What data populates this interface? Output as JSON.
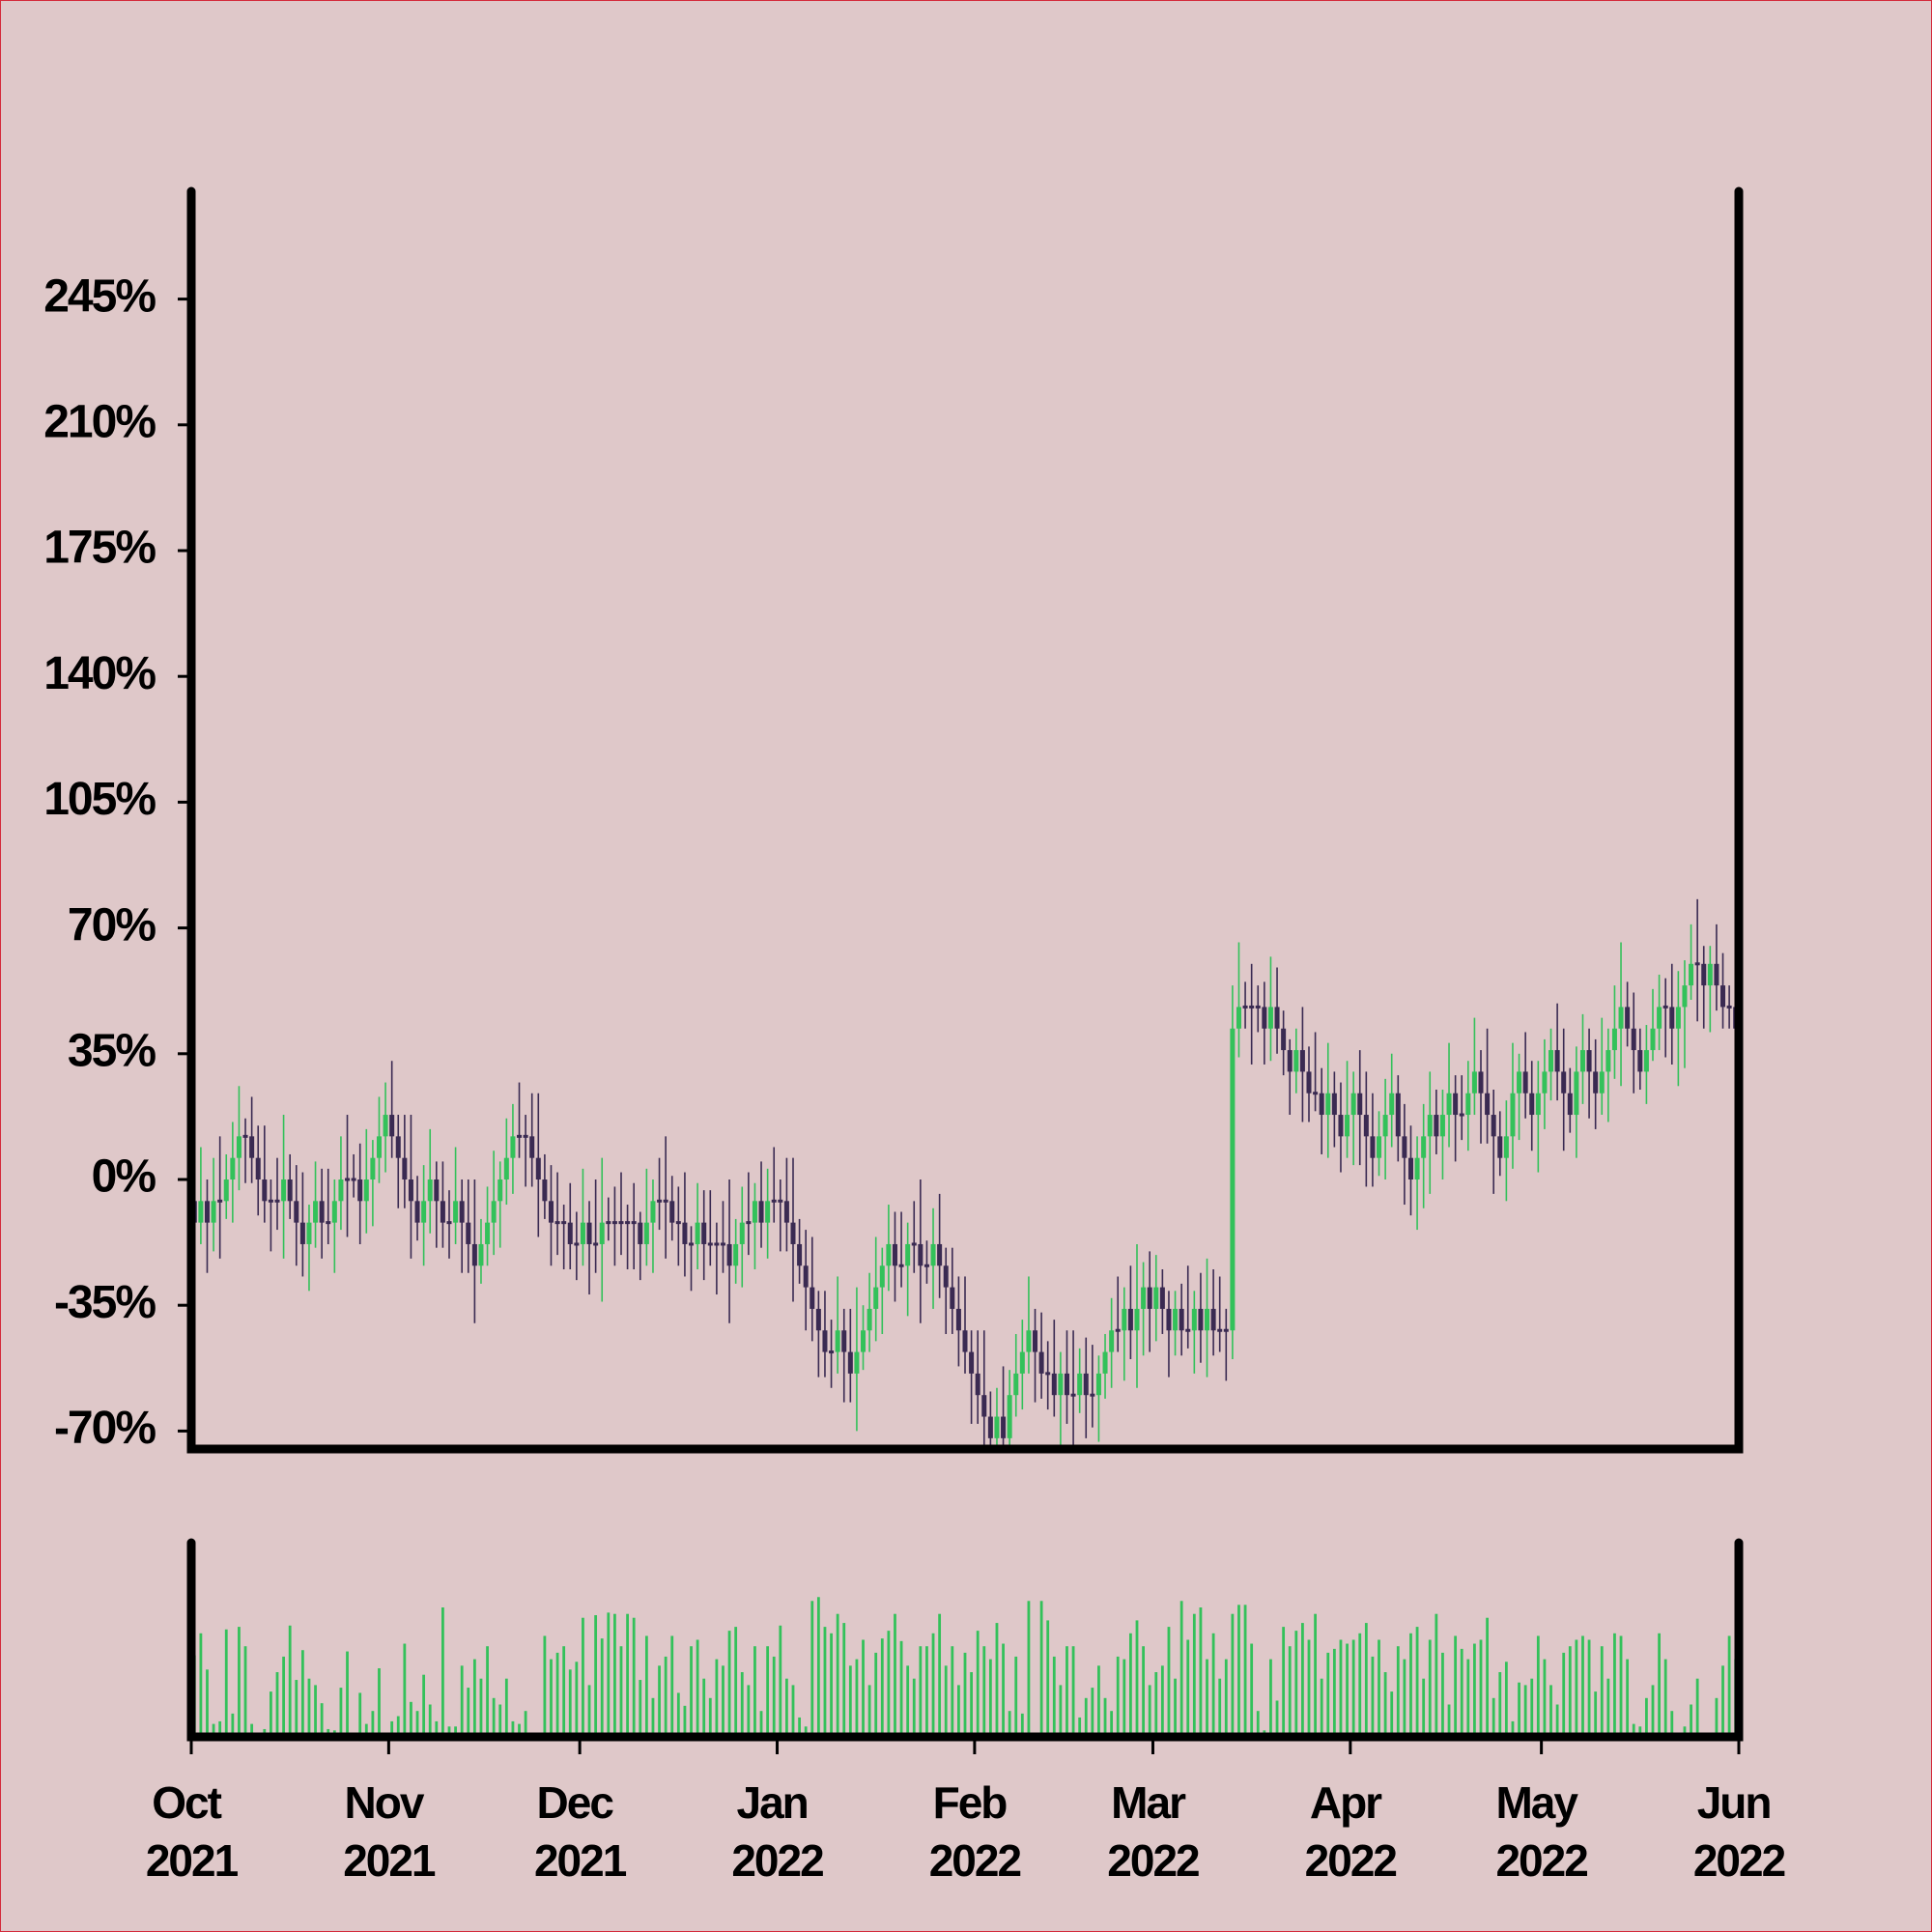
{
  "chart_data": {
    "type": "candlestick",
    "up_color": "#33c15a",
    "down_color": "#3a2a52",
    "volume_color": "#33c15a",
    "xlim": [
      0,
      243
    ],
    "xticks": [
      {
        "value": 0,
        "label": "Oct 2021"
      },
      {
        "value": 31,
        "label": "Nov 2021"
      },
      {
        "value": 61,
        "label": "Dec 2021"
      },
      {
        "value": 92,
        "label": "Jan 2022"
      },
      {
        "value": 123,
        "label": "Feb 2022"
      },
      {
        "value": 151,
        "label": "Mar 2022"
      },
      {
        "value": 182,
        "label": "Apr 2022"
      },
      {
        "value": 212,
        "label": "May 2022"
      },
      {
        "value": 243,
        "label": "Jun 2022"
      }
    ],
    "ylim": [
      -75,
      275
    ],
    "yticks": [
      {
        "value": -70,
        "label": "-70%"
      },
      {
        "value": -35,
        "label": "-35%"
      },
      {
        "value": 0,
        "label": "0%"
      },
      {
        "value": 35,
        "label": "35%"
      },
      {
        "value": 70,
        "label": "70%"
      },
      {
        "value": 105,
        "label": "105%"
      },
      {
        "value": 140,
        "label": "140%"
      },
      {
        "value": 175,
        "label": "175%"
      },
      {
        "value": 210,
        "label": "210%"
      },
      {
        "value": 245,
        "label": "245%"
      }
    ],
    "volume_ylim": [
      0,
      150
    ],
    "open": [
      -6,
      -12,
      -6,
      -12,
      -6,
      -6,
      0,
      6,
      12,
      12,
      6,
      0,
      -6,
      -6,
      -6,
      0,
      -6,
      -12,
      -18,
      -12,
      -6,
      -12,
      -12,
      -6,
      0,
      0,
      0,
      -6,
      0,
      6,
      12,
      18,
      12,
      6,
      0,
      -6,
      -12,
      -6,
      0,
      -6,
      -12,
      -12,
      -6,
      -12,
      -18,
      -24,
      -18,
      -12,
      -6,
      0,
      6,
      12,
      12,
      12,
      6,
      0,
      -6,
      -12,
      -12,
      -12,
      -18,
      -18,
      -12,
      -18,
      -18,
      -12,
      -12,
      -12,
      -12,
      -12,
      -12,
      -18,
      -12,
      -6,
      -6,
      -6,
      -12,
      -12,
      -18,
      -18,
      -12,
      -18,
      -18,
      -18,
      -18,
      -24,
      -18,
      -12,
      -12,
      -6,
      -12,
      -6,
      -6,
      -6,
      -12,
      -18,
      -24,
      -30,
      -36,
      -42,
      -48,
      -48,
      -42,
      -48,
      -54,
      -48,
      -42,
      -36,
      -30,
      -24,
      -18,
      -24,
      -24,
      -18,
      -18,
      -24,
      -24,
      -18,
      -24,
      -30,
      -36,
      -42,
      -48,
      -54,
      -60,
      -66,
      -72,
      -66,
      -72,
      -60,
      -54,
      -48,
      -42,
      -48,
      -54,
      -54,
      -60,
      -54,
      -60,
      -60,
      -54,
      -60,
      -60,
      -54,
      -48,
      -42,
      -42,
      -36,
      -42,
      -36,
      -30,
      -36,
      -30,
      -36,
      -42,
      -36,
      -42,
      -42,
      -36,
      -42,
      -36,
      -42,
      -42,
      -42,
      42,
      48,
      48,
      48,
      48,
      42,
      48,
      42,
      36,
      30,
      36,
      30,
      24,
      24,
      18,
      24,
      18,
      12,
      18,
      24,
      18,
      12,
      6,
      12,
      18,
      24,
      12,
      6,
      0,
      6,
      12,
      18,
      12,
      18,
      24,
      18,
      18,
      24,
      30,
      24,
      18,
      12,
      6,
      12,
      24,
      30,
      24,
      18,
      24,
      30,
      36,
      30,
      24,
      18,
      30,
      36,
      30,
      24,
      30,
      36,
      42,
      48,
      42,
      36,
      30,
      36,
      42,
      48,
      48,
      42,
      48,
      54,
      60,
      60,
      54,
      60,
      54,
      48,
      48
    ],
    "high": [
      3,
      9,
      0,
      6,
      12,
      7,
      16,
      26,
      17,
      23,
      15,
      15,
      0,
      6,
      18,
      7,
      4,
      2,
      -7,
      5,
      3,
      3,
      0,
      12,
      18,
      7,
      10,
      14,
      11,
      23,
      27,
      33,
      18,
      18,
      18,
      1,
      4,
      14,
      5,
      5,
      -3,
      9,
      0,
      0,
      0,
      -11,
      -2,
      8,
      5,
      17,
      21,
      27,
      18,
      24,
      24,
      7,
      4,
      2,
      -7,
      -1,
      -9,
      3,
      -6,
      0,
      6,
      -5,
      -2,
      2,
      -7,
      -1,
      -9,
      3,
      0,
      6,
      12,
      1,
      -2,
      2,
      -13,
      -1,
      -3,
      -3,
      -12,
      -6,
      0,
      -11,
      -2,
      2,
      -1,
      5,
      3,
      9,
      0,
      6,
      6,
      -11,
      -14,
      -16,
      -31,
      -31,
      -39,
      -27,
      -36,
      -36,
      -30,
      -35,
      -26,
      -16,
      -19,
      -7,
      -9,
      -9,
      -12,
      -6,
      0,
      -17,
      -8,
      -4,
      -19,
      -19,
      -27,
      -27,
      -42,
      -42,
      -42,
      -59,
      -58,
      -52,
      -53,
      -43,
      -39,
      -27,
      -36,
      -37,
      -45,
      -39,
      -48,
      -42,
      -42,
      -47,
      -44,
      -46,
      -49,
      -43,
      -33,
      -27,
      -30,
      -24,
      -18,
      -23,
      -20,
      -21,
      -25,
      -31,
      -31,
      -29,
      -24,
      -31,
      -26,
      -22,
      -25,
      -27,
      -36,
      54,
      66,
      55,
      60,
      54,
      55,
      62,
      59,
      47,
      39,
      42,
      48,
      37,
      41,
      31,
      38,
      30,
      27,
      33,
      30,
      36,
      30,
      24,
      19,
      28,
      35,
      29,
      21,
      15,
      12,
      21,
      30,
      25,
      25,
      38,
      29,
      29,
      33,
      45,
      36,
      42,
      25,
      19,
      22,
      38,
      35,
      41,
      33,
      33,
      39,
      42,
      49,
      42,
      31,
      37,
      46,
      42,
      39,
      45,
      42,
      54,
      66,
      55,
      52,
      42,
      43,
      53,
      57,
      56,
      60,
      58,
      61,
      71,
      78,
      65,
      65,
      71,
      63,
      54,
      60
    ],
    "low": [
      -22,
      -18,
      -26,
      -20,
      -22,
      -11,
      -12,
      -3,
      -1,
      -1,
      -10,
      -12,
      -20,
      -14,
      -22,
      -11,
      -24,
      -27,
      -31,
      -19,
      -22,
      -18,
      -26,
      -14,
      -16,
      -5,
      -18,
      -15,
      -13,
      -1,
      2,
      6,
      -8,
      -8,
      -22,
      -17,
      -24,
      -15,
      -19,
      -19,
      -22,
      -18,
      -26,
      -26,
      -40,
      -29,
      -24,
      -21,
      -19,
      -7,
      -4,
      6,
      -2,
      -2,
      -16,
      -11,
      -24,
      -21,
      -25,
      -25,
      -28,
      -24,
      -32,
      -26,
      -34,
      -17,
      -24,
      -21,
      -25,
      -25,
      -28,
      -24,
      -26,
      -14,
      -22,
      -17,
      -24,
      -27,
      -31,
      -25,
      -28,
      -24,
      -32,
      -26,
      -40,
      -29,
      -30,
      -21,
      -25,
      -19,
      -22,
      -12,
      -20,
      -20,
      -34,
      -29,
      -42,
      -45,
      -55,
      -55,
      -58,
      -54,
      -62,
      -62,
      -70,
      -53,
      -48,
      -45,
      -43,
      -31,
      -34,
      -30,
      -38,
      -26,
      -40,
      -29,
      -36,
      -33,
      -43,
      -43,
      -52,
      -54,
      -68,
      -68,
      -75,
      -75,
      -75,
      -75,
      -75,
      -66,
      -64,
      -54,
      -62,
      -61,
      -64,
      -66,
      -74,
      -68,
      -75,
      -65,
      -72,
      -69,
      -73,
      -61,
      -58,
      -48,
      -56,
      -50,
      -58,
      -49,
      -48,
      -45,
      -43,
      -55,
      -49,
      -49,
      -47,
      -54,
      -51,
      -55,
      -49,
      -48,
      -56,
      -50,
      34,
      42,
      32,
      41,
      32,
      33,
      35,
      29,
      18,
      24,
      16,
      16,
      19,
      7,
      6,
      9,
      2,
      6,
      4,
      4,
      -2,
      -2,
      1,
      0,
      9,
      5,
      -7,
      -10,
      -14,
      -8,
      -4,
      7,
      0,
      9,
      5,
      11,
      8,
      18,
      10,
      10,
      -4,
      1,
      -6,
      3,
      11,
      17,
      8,
      2,
      14,
      22,
      22,
      8,
      13,
      6,
      21,
      17,
      14,
      18,
      16,
      28,
      26,
      37,
      24,
      25,
      21,
      33,
      36,
      34,
      32,
      26,
      31,
      50,
      44,
      42,
      41,
      47,
      42,
      42,
      40
    ],
    "close": [
      -12,
      -6,
      -12,
      -6,
      -6,
      0,
      6,
      12,
      12,
      6,
      0,
      -6,
      -6,
      -6,
      0,
      -6,
      -12,
      -18,
      -12,
      -6,
      -12,
      -12,
      -6,
      0,
      0,
      0,
      -6,
      0,
      6,
      12,
      18,
      12,
      6,
      0,
      -6,
      -12,
      -6,
      0,
      -6,
      -12,
      -12,
      -6,
      -12,
      -18,
      -24,
      -18,
      -12,
      -6,
      0,
      6,
      12,
      12,
      12,
      6,
      0,
      -6,
      -12,
      -12,
      -12,
      -18,
      -18,
      -12,
      -18,
      -18,
      -12,
      -12,
      -12,
      -12,
      -12,
      -12,
      -18,
      -12,
      -6,
      -6,
      -6,
      -12,
      -12,
      -18,
      -18,
      -12,
      -18,
      -18,
      -18,
      -18,
      -24,
      -18,
      -12,
      -12,
      -6,
      -12,
      -6,
      -6,
      -6,
      -12,
      -18,
      -24,
      -30,
      -36,
      -42,
      -48,
      -48,
      -42,
      -48,
      -54,
      -48,
      -42,
      -36,
      -30,
      -24,
      -18,
      -24,
      -24,
      -18,
      -18,
      -24,
      -24,
      -18,
      -24,
      -30,
      -36,
      -42,
      -48,
      -54,
      -60,
      -66,
      -72,
      -66,
      -72,
      -60,
      -54,
      -48,
      -42,
      -48,
      -54,
      -54,
      -60,
      -54,
      -60,
      -60,
      -54,
      -60,
      -60,
      -54,
      -48,
      -42,
      -42,
      -36,
      -42,
      -36,
      -30,
      -36,
      -30,
      -36,
      -42,
      -36,
      -42,
      -42,
      -36,
      -42,
      -36,
      -42,
      -42,
      -42,
      42,
      48,
      48,
      48,
      48,
      42,
      48,
      42,
      36,
      30,
      36,
      30,
      24,
      24,
      18,
      24,
      18,
      12,
      18,
      24,
      18,
      12,
      6,
      12,
      18,
      24,
      12,
      6,
      0,
      6,
      12,
      18,
      12,
      18,
      24,
      18,
      18,
      24,
      30,
      24,
      18,
      12,
      6,
      12,
      24,
      30,
      24,
      18,
      24,
      30,
      36,
      30,
      24,
      18,
      30,
      36,
      30,
      24,
      30,
      36,
      42,
      48,
      42,
      36,
      30,
      36,
      42,
      48,
      48,
      42,
      48,
      54,
      60,
      60,
      54,
      60,
      54,
      48,
      48,
      42
    ],
    "volume": [
      63,
      80,
      52,
      10,
      12,
      83,
      18,
      85,
      70,
      10,
      0,
      6,
      35,
      50,
      62,
      86,
      44,
      67,
      45,
      40,
      26,
      6,
      5,
      38,
      66,
      0,
      34,
      10,
      20,
      53,
      0,
      12,
      16,
      72,
      27,
      20,
      48,
      25,
      12,
      100,
      8,
      8,
      55,
      38,
      60,
      45,
      70,
      30,
      25,
      45,
      12,
      10,
      20,
      3,
      0,
      78,
      60,
      65,
      70,
      52,
      58,
      92,
      40,
      94,
      76,
      96,
      95,
      70,
      95,
      92,
      44,
      78,
      30,
      55,
      62,
      78,
      34,
      24,
      70,
      75,
      45,
      30,
      60,
      55,
      82,
      85,
      50,
      40,
      70,
      20,
      70,
      62,
      86,
      45,
      40,
      15,
      8,
      105,
      108,
      85,
      80,
      95,
      88,
      55,
      60,
      75,
      40,
      65,
      76,
      82,
      95,
      74,
      55,
      45,
      70,
      70,
      80,
      95,
      55,
      70,
      40,
      65,
      50,
      82,
      70,
      60,
      88,
      72,
      20,
      62,
      18,
      105,
      3,
      105,
      90,
      62,
      40,
      70,
      70,
      15,
      30,
      38,
      55,
      30,
      20,
      62,
      60,
      80,
      90,
      70,
      40,
      50,
      55,
      85,
      45,
      105,
      75,
      95,
      100,
      60,
      80,
      45,
      60,
      95,
      102,
      102,
      72,
      20,
      5,
      60,
      28,
      85,
      70,
      82,
      88,
      75,
      95,
      45,
      65,
      68,
      75,
      72,
      75,
      80,
      88,
      62,
      75,
      50,
      35,
      70,
      60,
      80,
      85,
      45,
      75,
      95,
      65,
      25,
      78,
      68,
      60,
      72,
      75,
      92,
      30,
      50,
      58,
      12,
      42,
      40,
      45,
      78,
      60,
      40,
      25,
      65,
      70,
      75,
      78,
      75,
      35,
      70,
      45,
      80,
      78,
      60,
      10,
      8,
      30,
      40,
      80,
      60,
      20,
      0,
      8,
      25,
      45,
      0,
      0,
      30,
      55,
      78,
      60
    ]
  }
}
